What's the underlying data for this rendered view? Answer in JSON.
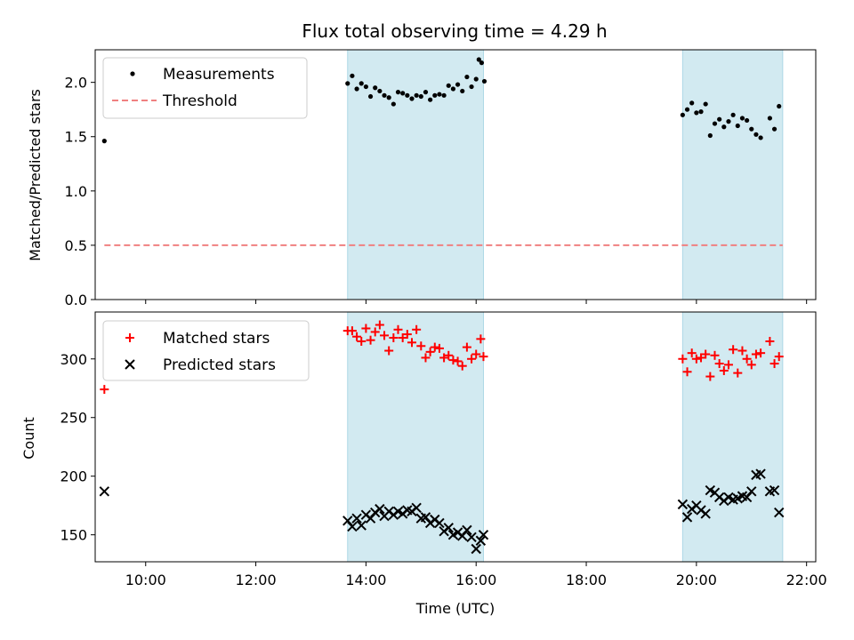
{
  "title": "Flux total observing time = 4.29 h",
  "x_tick_labels": [
    "10:00",
    "12:00",
    "14:00",
    "16:00",
    "18:00",
    "20:00",
    "22:00"
  ],
  "colors": {
    "measurement": "#000000",
    "threshold": "#f08080",
    "matched": "#ff0000",
    "predicted": "#000000",
    "shade": "#add8e6"
  },
  "chart_data": [
    {
      "type": "scatter",
      "title": "Flux total observing time = 4.29 h",
      "xlabel": "",
      "ylabel": "Matched/Predicted stars",
      "ylim": [
        0,
        2.3
      ],
      "xlim": [
        "09:05",
        "22:10"
      ],
      "yticks": [
        0.0,
        0.5,
        1.0,
        1.5,
        2.0
      ],
      "legend_position": "upper-left",
      "shaded_intervals": [
        [
          "13:40",
          "16:08"
        ],
        [
          "19:45",
          "21:34"
        ]
      ],
      "threshold": {
        "name": "Threshold",
        "value": 0.5,
        "x_range": [
          "09:15",
          "21:34"
        ]
      },
      "series": [
        {
          "name": "Measurements",
          "points": [
            [
              "09:15",
              1.46
            ],
            [
              "13:40",
              1.99
            ],
            [
              "13:45",
              2.06
            ],
            [
              "13:50",
              1.94
            ],
            [
              "13:55",
              1.99
            ],
            [
              "14:00",
              1.96
            ],
            [
              "14:05",
              1.87
            ],
            [
              "14:10",
              1.95
            ],
            [
              "14:15",
              1.92
            ],
            [
              "14:20",
              1.88
            ],
            [
              "14:25",
              1.86
            ],
            [
              "14:30",
              1.8
            ],
            [
              "14:35",
              1.91
            ],
            [
              "14:40",
              1.9
            ],
            [
              "14:45",
              1.88
            ],
            [
              "14:50",
              1.85
            ],
            [
              "14:55",
              1.88
            ],
            [
              "15:00",
              1.87
            ],
            [
              "15:05",
              1.91
            ],
            [
              "15:10",
              1.84
            ],
            [
              "15:15",
              1.88
            ],
            [
              "15:20",
              1.89
            ],
            [
              "15:25",
              1.88
            ],
            [
              "15:30",
              1.97
            ],
            [
              "15:35",
              1.94
            ],
            [
              "15:40",
              1.98
            ],
            [
              "15:45",
              1.92
            ],
            [
              "15:50",
              2.05
            ],
            [
              "15:55",
              1.96
            ],
            [
              "16:00",
              2.03
            ],
            [
              "16:03",
              2.21
            ],
            [
              "16:06",
              2.18
            ],
            [
              "16:09",
              2.01
            ],
            [
              "19:45",
              1.7
            ],
            [
              "19:50",
              1.75
            ],
            [
              "19:55",
              1.81
            ],
            [
              "20:00",
              1.72
            ],
            [
              "20:05",
              1.73
            ],
            [
              "20:10",
              1.8
            ],
            [
              "20:15",
              1.51
            ],
            [
              "20:20",
              1.62
            ],
            [
              "20:25",
              1.66
            ],
            [
              "20:30",
              1.59
            ],
            [
              "20:35",
              1.64
            ],
            [
              "20:40",
              1.7
            ],
            [
              "20:45",
              1.6
            ],
            [
              "20:50",
              1.67
            ],
            [
              "20:55",
              1.65
            ],
            [
              "21:00",
              1.57
            ],
            [
              "21:05",
              1.52
            ],
            [
              "21:10",
              1.49
            ],
            [
              "21:20",
              1.67
            ],
            [
              "21:25",
              1.57
            ],
            [
              "21:30",
              1.78
            ]
          ]
        }
      ]
    },
    {
      "type": "scatter",
      "xlabel": "Time (UTC)",
      "ylabel": "Count",
      "ylim": [
        127,
        340
      ],
      "xlim": [
        "09:05",
        "22:10"
      ],
      "yticks": [
        150,
        200,
        250,
        300
      ],
      "legend_position": "upper-left",
      "shaded_intervals": [
        [
          "13:40",
          "16:08"
        ],
        [
          "19:45",
          "21:34"
        ]
      ],
      "series": [
        {
          "name": "Matched stars",
          "points": [
            [
              "09:15",
              274
            ],
            [
              "13:40",
              324
            ],
            [
              "13:45",
              324
            ],
            [
              "13:50",
              319
            ],
            [
              "13:55",
              315
            ],
            [
              "14:00",
              326
            ],
            [
              "14:05",
              316
            ],
            [
              "14:10",
              323
            ],
            [
              "14:15",
              329
            ],
            [
              "14:20",
              320
            ],
            [
              "14:25",
              307
            ],
            [
              "14:30",
              318
            ],
            [
              "14:35",
              325
            ],
            [
              "14:40",
              318
            ],
            [
              "14:45",
              321
            ],
            [
              "14:50",
              314
            ],
            [
              "14:55",
              325
            ],
            [
              "15:00",
              311
            ],
            [
              "15:05",
              301
            ],
            [
              "15:10",
              306
            ],
            [
              "15:15",
              310
            ],
            [
              "15:20",
              309
            ],
            [
              "15:25",
              301
            ],
            [
              "15:30",
              303
            ],
            [
              "15:35",
              299
            ],
            [
              "15:40",
              298
            ],
            [
              "15:45",
              294
            ],
            [
              "15:50",
              310
            ],
            [
              "15:55",
              300
            ],
            [
              "16:00",
              304
            ],
            [
              "16:05",
              317
            ],
            [
              "16:08",
              302
            ],
            [
              "19:45",
              300
            ],
            [
              "19:50",
              289
            ],
            [
              "19:55",
              305
            ],
            [
              "20:00",
              300
            ],
            [
              "20:05",
              301
            ],
            [
              "20:10",
              304
            ],
            [
              "20:15",
              285
            ],
            [
              "20:20",
              303
            ],
            [
              "20:25",
              296
            ],
            [
              "20:30",
              290
            ],
            [
              "20:35",
              295
            ],
            [
              "20:40",
              308
            ],
            [
              "20:45",
              288
            ],
            [
              "20:50",
              307
            ],
            [
              "20:55",
              300
            ],
            [
              "21:00",
              295
            ],
            [
              "21:05",
              304
            ],
            [
              "21:10",
              305
            ],
            [
              "21:20",
              315
            ],
            [
              "21:25",
              296
            ],
            [
              "21:30",
              302
            ]
          ]
        },
        {
          "name": "Predicted stars",
          "points": [
            [
              "09:15",
              187
            ],
            [
              "13:40",
              162
            ],
            [
              "13:45",
              157
            ],
            [
              "13:50",
              164
            ],
            [
              "13:55",
              158
            ],
            [
              "14:00",
              167
            ],
            [
              "14:05",
              164
            ],
            [
              "14:10",
              169
            ],
            [
              "14:15",
              172
            ],
            [
              "14:20",
              166
            ],
            [
              "14:25",
              170
            ],
            [
              "14:30",
              167
            ],
            [
              "14:35",
              170
            ],
            [
              "14:40",
              168
            ],
            [
              "14:45",
              171
            ],
            [
              "14:50",
              170
            ],
            [
              "14:55",
              173
            ],
            [
              "15:00",
              164
            ],
            [
              "15:05",
              165
            ],
            [
              "15:10",
              160
            ],
            [
              "15:15",
              163
            ],
            [
              "15:20",
              160
            ],
            [
              "15:25",
              153
            ],
            [
              "15:30",
              156
            ],
            [
              "15:35",
              150
            ],
            [
              "15:40",
              152
            ],
            [
              "15:45",
              149
            ],
            [
              "15:50",
              154
            ],
            [
              "15:55",
              148
            ],
            [
              "16:00",
              138
            ],
            [
              "16:05",
              145
            ],
            [
              "16:08",
              150
            ],
            [
              "19:45",
              176
            ],
            [
              "19:50",
              165
            ],
            [
              "19:55",
              172
            ],
            [
              "20:00",
              175
            ],
            [
              "20:05",
              171
            ],
            [
              "20:10",
              168
            ],
            [
              "20:15",
              188
            ],
            [
              "20:20",
              186
            ],
            [
              "20:25",
              182
            ],
            [
              "20:30",
              179
            ],
            [
              "20:35",
              182
            ],
            [
              "20:40",
              180
            ],
            [
              "20:45",
              181
            ],
            [
              "20:50",
              183
            ],
            [
              "20:55",
              182
            ],
            [
              "21:00",
              187
            ],
            [
              "21:05",
              201
            ],
            [
              "21:10",
              202
            ],
            [
              "21:20",
              187
            ],
            [
              "21:25",
              188
            ],
            [
              "21:30",
              169
            ]
          ]
        }
      ]
    }
  ]
}
